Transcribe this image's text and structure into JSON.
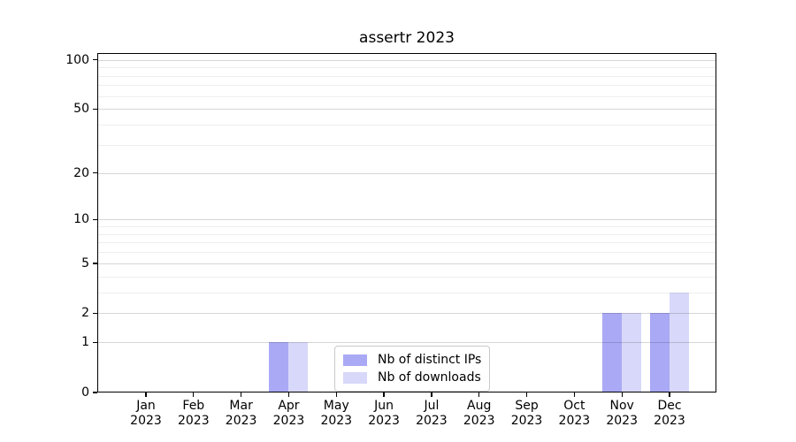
{
  "chart_data": {
    "type": "bar",
    "title": "assertr 2023",
    "categories": [
      "Jan",
      "Feb",
      "Mar",
      "Apr",
      "May",
      "Jun",
      "Jul",
      "Aug",
      "Sep",
      "Oct",
      "Nov",
      "Dec"
    ],
    "year": "2023",
    "series": [
      {
        "name": "Nb of distinct IPs",
        "color": "#a9a9f5",
        "values": [
          0,
          0,
          0,
          1,
          0,
          0,
          0,
          0,
          0,
          0,
          2,
          2
        ]
      },
      {
        "name": "Nb of downloads",
        "color": "#d8d8fa",
        "values": [
          0,
          0,
          0,
          1,
          0,
          0,
          0,
          0,
          0,
          0,
          2,
          3
        ]
      }
    ],
    "xlabel": "",
    "ylabel": "",
    "yscale": "log1p",
    "ylim": [
      0,
      110
    ],
    "yticks": [
      0,
      1,
      2,
      5,
      10,
      20,
      50,
      100
    ],
    "minor_yticks": [
      3,
      4,
      6,
      7,
      8,
      9,
      30,
      40,
      60,
      70,
      80,
      90
    ],
    "grid": "horizontal",
    "legend_position": "lower center"
  },
  "colors": {
    "background": "#ffffff",
    "axis": "#000000",
    "grid_major": "rgba(0,0,0,0.16)",
    "grid_minor": "rgba(0,0,0,0.065)",
    "legend_border": "#c9c9c9",
    "bar_distinct_ips": "#a9a9f5",
    "bar_downloads": "#d8d8fa"
  }
}
